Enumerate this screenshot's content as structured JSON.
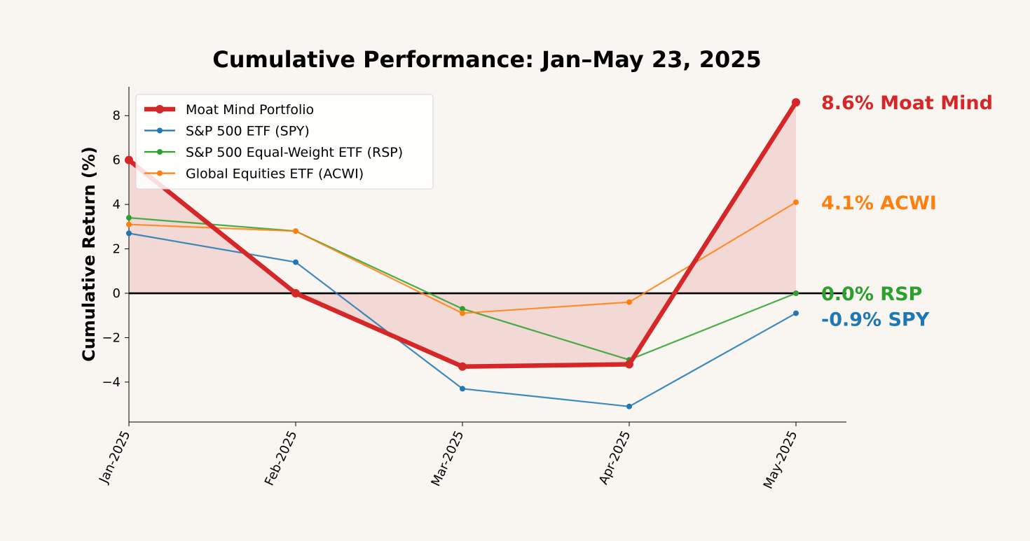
{
  "chart_data": {
    "type": "line",
    "title": "Cumulative Performance: Jan–May 23, 2025",
    "xlabel": "",
    "ylabel": "Cumulative Return (%)",
    "categories": [
      "Jan-2025",
      "Feb-2025",
      "Mar-2025",
      "Apr-2025",
      "May-2025"
    ],
    "ylim": [
      -5.8,
      9.3
    ],
    "yticks": [
      -4,
      -2,
      0,
      2,
      4,
      6,
      8
    ],
    "ytick_labels": [
      "−4",
      "−2",
      "0",
      "2",
      "4",
      "6",
      "8"
    ],
    "legend_position": "top-left",
    "grid": false,
    "series": [
      {
        "name": "Moat Mind Portfolio",
        "values": [
          6.0,
          0.0,
          -3.3,
          -3.2,
          8.6
        ],
        "color": "#d62728",
        "emphasis": true,
        "end_label": "8.6% Moat Mind"
      },
      {
        "name": "S&P 500 ETF (SPY)",
        "values": [
          2.7,
          1.4,
          -4.3,
          -5.1,
          -0.9
        ],
        "color": "#1f77b4",
        "end_label": "-0.9% SPY"
      },
      {
        "name": "S&P 500 Equal-Weight ETF (RSP)",
        "values": [
          3.4,
          2.8,
          -0.7,
          -3.0,
          0.0
        ],
        "color": "#2ca02c",
        "end_label": "0.0% RSP"
      },
      {
        "name": "Global Equities ETF (ACWI)",
        "values": [
          3.1,
          2.8,
          -0.9,
          -0.4,
          4.1
        ],
        "color": "#ff7f0e",
        "end_label": "4.1% ACWI"
      }
    ]
  }
}
